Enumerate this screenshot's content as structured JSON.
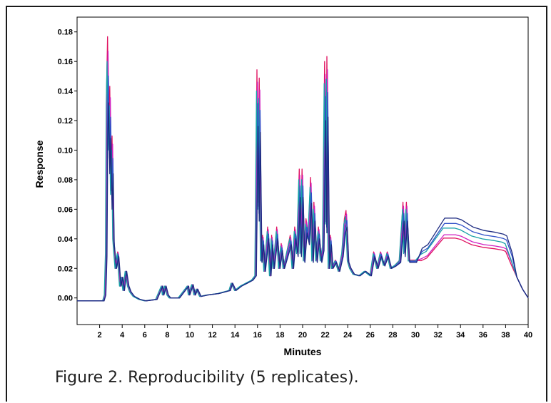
{
  "caption": "Figure 2. Reproducibility (5 replicates).",
  "chart_data": {
    "type": "line",
    "title": "",
    "xlabel": "Minutes",
    "ylabel": "Response",
    "xlim": [
      0,
      40
    ],
    "ylim": [
      -0.018,
      0.19
    ],
    "x_ticks": [
      "2",
      "4",
      "6",
      "8",
      "10",
      "12",
      "14",
      "16",
      "18",
      "20",
      "22",
      "24",
      "26",
      "28",
      "30",
      "32",
      "34",
      "36",
      "38",
      "40"
    ],
    "y_ticks": [
      "0.00",
      "0.02",
      "0.04",
      "0.06",
      "0.08",
      "0.10",
      "0.12",
      "0.14",
      "0.16",
      "0.18"
    ],
    "grid": false,
    "legend": "none",
    "colors": [
      "#e0115f",
      "#d020c0",
      "#18a0a8",
      "#3050c8",
      "#1c2a80"
    ],
    "base_series": {
      "x": [
        0,
        2.3,
        2.45,
        2.55,
        2.62,
        2.7,
        2.8,
        2.9,
        3.0,
        3.1,
        3.2,
        3.4,
        3.6,
        3.8,
        3.95,
        4.1,
        4.3,
        4.5,
        4.7,
        5.0,
        5.5,
        6.0,
        7.0,
        7.5,
        7.6,
        7.8,
        8.0,
        8.2,
        9.0,
        9.8,
        9.9,
        10.2,
        10.4,
        10.6,
        10.9,
        11.5,
        12.5,
        13.5,
        13.7,
        14.0,
        14.5,
        15.0,
        15.5,
        15.8,
        15.95,
        16.05,
        16.15,
        16.3,
        16.45,
        16.6,
        16.9,
        17.1,
        17.25,
        17.4,
        17.7,
        17.9,
        18.1,
        18.3,
        18.6,
        18.9,
        19.1,
        19.3,
        19.5,
        19.7,
        19.8,
        19.95,
        20.1,
        20.3,
        20.5,
        20.7,
        20.85,
        21.0,
        21.2,
        21.4,
        21.6,
        21.8,
        21.95,
        22.05,
        22.15,
        22.3,
        22.45,
        22.6,
        22.9,
        23.2,
        23.5,
        23.7,
        23.85,
        24.0,
        24.2,
        24.5,
        25.0,
        25.5,
        26.0,
        26.3,
        26.6,
        26.9,
        27.2,
        27.5,
        27.8,
        28.2,
        28.6,
        28.9,
        29.0,
        29.2,
        29.4,
        29.6,
        30.0,
        30.5,
        31.0,
        31.5,
        32.0,
        32.5,
        33.0,
        33.5,
        34.0,
        34.5,
        35.0,
        36.0,
        37.0,
        37.7,
        38.0,
        38.5,
        39.0,
        39.5,
        40.0
      ],
      "y": [
        -0.002,
        -0.002,
        0.002,
        0.03,
        0.13,
        0.16,
        0.1,
        0.13,
        0.07,
        0.1,
        0.04,
        0.02,
        0.03,
        0.008,
        0.014,
        0.005,
        0.018,
        0.008,
        0.004,
        0.001,
        -0.001,
        -0.002,
        -0.001,
        0.008,
        0.002,
        0.008,
        0.002,
        0.0,
        0.0,
        0.008,
        0.002,
        0.009,
        0.002,
        0.006,
        0.001,
        0.002,
        0.003,
        0.005,
        0.01,
        0.005,
        0.008,
        0.01,
        0.012,
        0.015,
        0.14,
        0.06,
        0.135,
        0.025,
        0.04,
        0.018,
        0.045,
        0.015,
        0.04,
        0.02,
        0.045,
        0.02,
        0.035,
        0.02,
        0.03,
        0.04,
        0.02,
        0.045,
        0.03,
        0.08,
        0.03,
        0.08,
        0.025,
        0.05,
        0.04,
        0.075,
        0.025,
        0.06,
        0.025,
        0.045,
        0.025,
        0.035,
        0.145,
        0.05,
        0.148,
        0.02,
        0.04,
        0.02,
        0.025,
        0.018,
        0.03,
        0.05,
        0.055,
        0.025,
        0.02,
        0.016,
        0.015,
        0.018,
        0.015,
        0.03,
        0.02,
        0.03,
        0.022,
        0.03,
        0.02,
        0.022,
        0.025,
        0.06,
        0.03,
        0.06,
        0.025,
        0.025,
        0.025,
        0.028,
        0.03,
        0.035,
        0.04,
        0.045,
        0.045,
        0.045,
        0.044,
        0.042,
        0.04,
        0.038,
        0.037,
        0.036,
        0.035,
        0.025,
        0.014,
        0.006,
        0.0
      ]
    },
    "series": [
      {
        "scale": 1.12,
        "tail": 0.9,
        "dx": 0.0
      },
      {
        "scale": 1.05,
        "tail": 0.95,
        "dx": 0.05
      },
      {
        "scale": 1.0,
        "tail": 1.05,
        "dx": -0.04
      },
      {
        "scale": 0.93,
        "tail": 1.12,
        "dx": 0.08
      },
      {
        "scale": 0.8,
        "tail": 1.2,
        "dx": 0.1
      }
    ]
  }
}
